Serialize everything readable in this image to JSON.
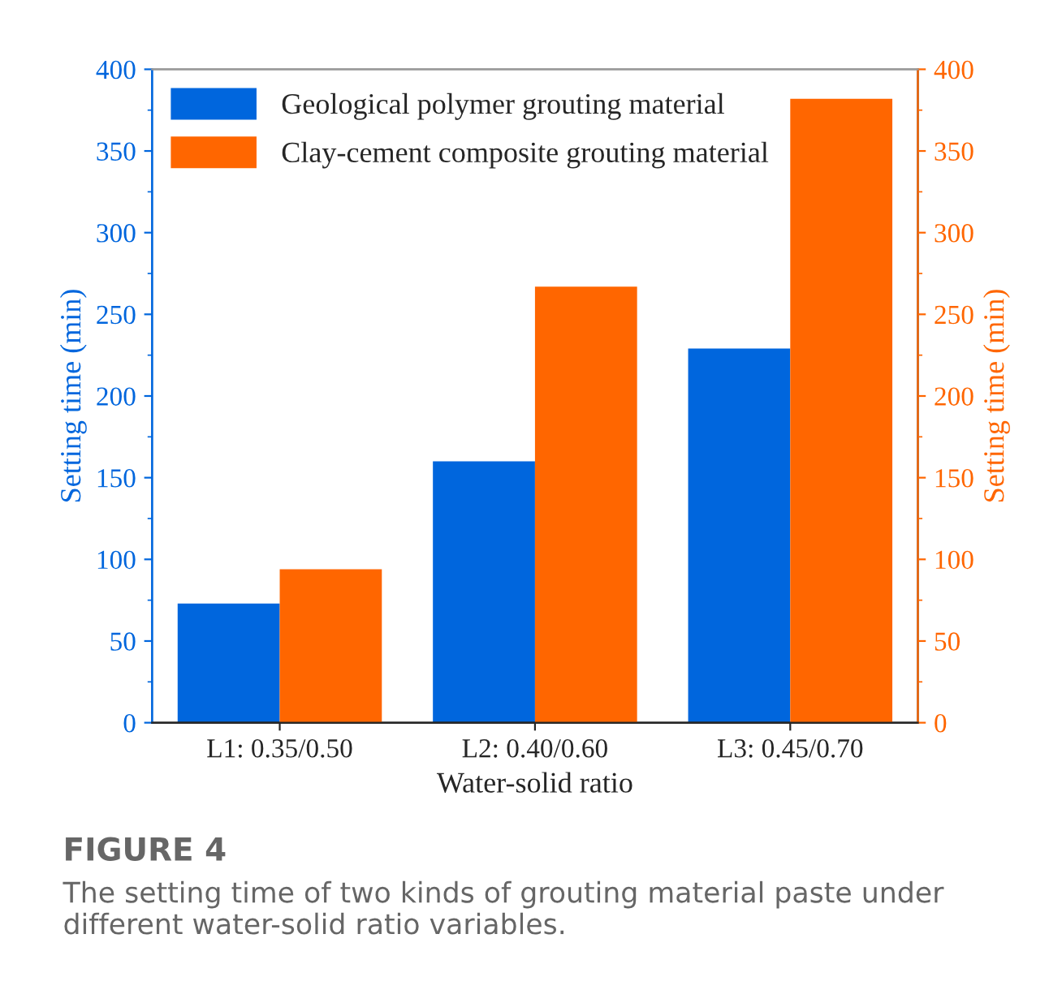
{
  "chart_data": {
    "type": "bar",
    "xlabel": "Water-solid ratio",
    "ylabel": "Setting time (min)",
    "y2label": "Setting time (min)",
    "categories": [
      "L1: 0.35/0.50",
      "L2: 0.40/0.60",
      "L3: 0.45/0.70"
    ],
    "series": [
      {
        "name": "Geological polymer grouting material",
        "color": "#0066dd",
        "values": [
          73,
          160,
          229
        ]
      },
      {
        "name": "Clay-cement composite grouting material",
        "color": "#ff6600",
        "values": [
          94,
          267,
          382
        ],
        "axis": "y2"
      }
    ],
    "ylim": [
      0,
      400
    ],
    "yticks": [
      0,
      50,
      100,
      150,
      200,
      250,
      300,
      350,
      400
    ],
    "y2lim": [
      0,
      400
    ],
    "y2ticks": [
      0,
      50,
      100,
      150,
      200,
      250,
      300,
      350,
      400
    ],
    "legend": "top left",
    "grid": false,
    "annotations": [
      "FIGURE 4",
      "The setting time of two kinds of grouting material paste under different water-solid ratio variables."
    ]
  }
}
